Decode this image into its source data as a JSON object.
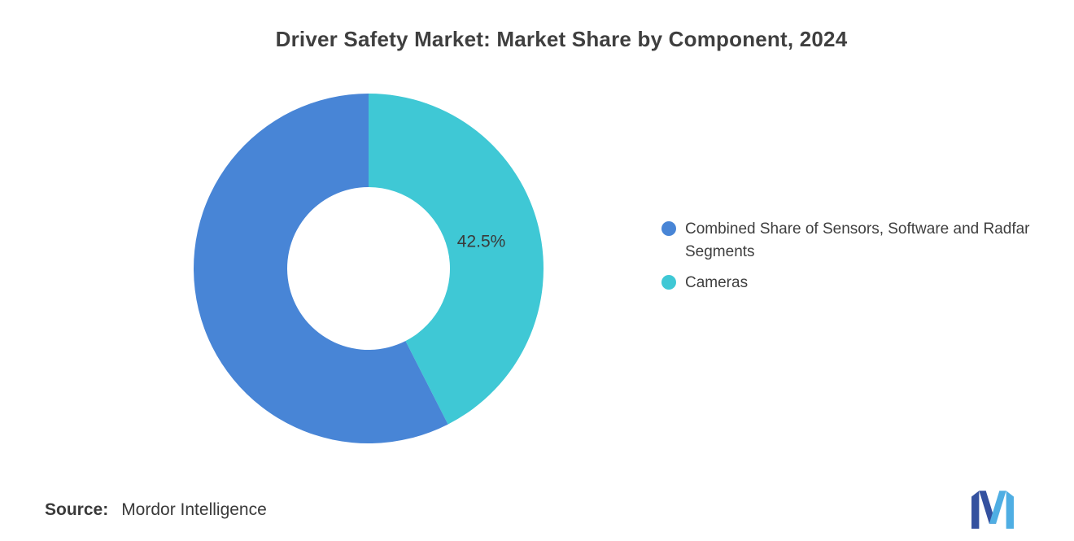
{
  "chart_data": {
    "type": "pie",
    "subtype": "donut",
    "title": "Driver Safety Market: Market Share by Component, 2024",
    "start_angle_deg": 0,
    "direction": "clockwise",
    "inner_radius_ratio": 0.465,
    "legend_position": "right",
    "segments": [
      {
        "label": "Cameras",
        "value": 42.5,
        "color": "#3FC8D5",
        "data_label": "42.5%"
      },
      {
        "label": "Combined Share of Sensors, Software and Radfar Segments",
        "value": 57.5,
        "color": "#4885D6",
        "data_label": ""
      }
    ],
    "legend": [
      {
        "label": "Combined Share of Sensors, Software and Radfar Segments",
        "color": "#4885D6"
      },
      {
        "label": "Cameras",
        "color": "#3FC8D5"
      }
    ]
  },
  "footer": {
    "source_label": "Source:",
    "source_value": "Mordor Intelligence"
  },
  "logo": {
    "name": "mordor-intelligence-logo",
    "color_dark": "#34519F",
    "color_light": "#4FAEE3"
  }
}
